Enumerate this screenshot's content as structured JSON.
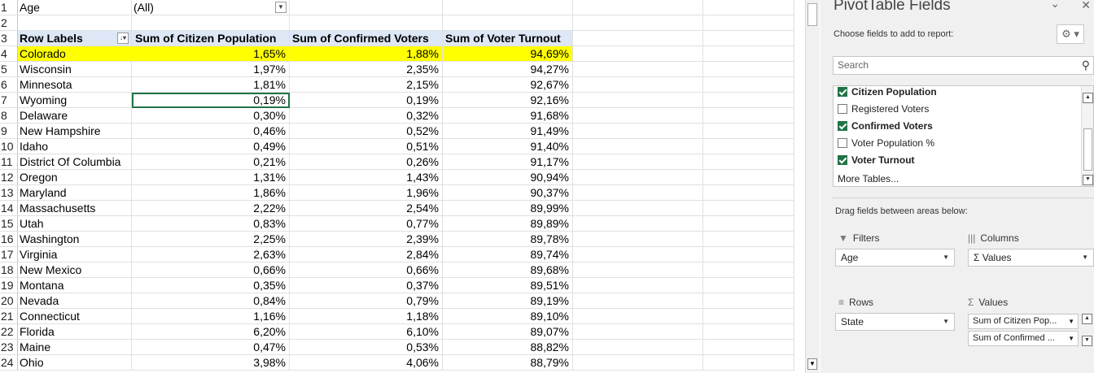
{
  "filter": {
    "row_num": "1",
    "label": "Age",
    "value": "(All)"
  },
  "blank_row_num": "2",
  "header": {
    "row_num": "3",
    "row_labels": "Row Labels",
    "col1": "Sum of Citizen Population",
    "col2": "Sum of Confirmed Voters",
    "col3": "Sum of Voter Turnout"
  },
  "rows": [
    {
      "num": "4",
      "state": "Colorado",
      "citizen": "1,65%",
      "confirmed": "1,88%",
      "turnout": "94,69%"
    },
    {
      "num": "5",
      "state": "Wisconsin",
      "citizen": "1,97%",
      "confirmed": "2,35%",
      "turnout": "94,27%"
    },
    {
      "num": "6",
      "state": "Minnesota",
      "citizen": "1,81%",
      "confirmed": "2,15%",
      "turnout": "92,67%"
    },
    {
      "num": "7",
      "state": "Wyoming",
      "citizen": "0,19%",
      "confirmed": "0,19%",
      "turnout": "92,16%"
    },
    {
      "num": "8",
      "state": "Delaware",
      "citizen": "0,30%",
      "confirmed": "0,32%",
      "turnout": "91,68%"
    },
    {
      "num": "9",
      "state": "New Hampshire",
      "citizen": "0,46%",
      "confirmed": "0,52%",
      "turnout": "91,49%"
    },
    {
      "num": "10",
      "state": "Idaho",
      "citizen": "0,49%",
      "confirmed": "0,51%",
      "turnout": "91,40%"
    },
    {
      "num": "11",
      "state": "District Of Columbia",
      "citizen": "0,21%",
      "confirmed": "0,26%",
      "turnout": "91,17%"
    },
    {
      "num": "12",
      "state": "Oregon",
      "citizen": "1,31%",
      "confirmed": "1,43%",
      "turnout": "90,94%"
    },
    {
      "num": "13",
      "state": "Maryland",
      "citizen": "1,86%",
      "confirmed": "1,96%",
      "turnout": "90,37%"
    },
    {
      "num": "14",
      "state": "Massachusetts",
      "citizen": "2,22%",
      "confirmed": "2,54%",
      "turnout": "89,99%"
    },
    {
      "num": "15",
      "state": "Utah",
      "citizen": "0,83%",
      "confirmed": "0,77%",
      "turnout": "89,89%"
    },
    {
      "num": "16",
      "state": "Washington",
      "citizen": "2,25%",
      "confirmed": "2,39%",
      "turnout": "89,78%"
    },
    {
      "num": "17",
      "state": "Virginia",
      "citizen": "2,63%",
      "confirmed": "2,84%",
      "turnout": "89,74%"
    },
    {
      "num": "18",
      "state": "New Mexico",
      "citizen": "0,66%",
      "confirmed": "0,66%",
      "turnout": "89,68%"
    },
    {
      "num": "19",
      "state": "Montana",
      "citizen": "0,35%",
      "confirmed": "0,37%",
      "turnout": "89,51%"
    },
    {
      "num": "20",
      "state": "Nevada",
      "citizen": "0,84%",
      "confirmed": "0,79%",
      "turnout": "89,19%"
    },
    {
      "num": "21",
      "state": "Connecticut",
      "citizen": "1,16%",
      "confirmed": "1,18%",
      "turnout": "89,10%"
    },
    {
      "num": "22",
      "state": "Florida",
      "citizen": "6,20%",
      "confirmed": "6,10%",
      "turnout": "89,07%"
    },
    {
      "num": "23",
      "state": "Maine",
      "citizen": "0,47%",
      "confirmed": "0,53%",
      "turnout": "88,82%"
    },
    {
      "num": "24",
      "state": "Ohio",
      "citizen": "3,98%",
      "confirmed": "4,06%",
      "turnout": "88,79%"
    }
  ],
  "highlight_color": "#ffff00",
  "header_fill": "#dde7f6",
  "selection_color": "#217346",
  "panel": {
    "title": "PivotTable Fields",
    "subtitle": "Choose fields to add to report:",
    "search_placeholder": "Search",
    "fields": [
      {
        "label": "Citizen Population",
        "checked": true
      },
      {
        "label": "Registered Voters",
        "checked": false
      },
      {
        "label": "Confirmed Voters",
        "checked": true
      },
      {
        "label": "Voter Population %",
        "checked": false
      },
      {
        "label": "Voter Turnout",
        "checked": true
      }
    ],
    "more_tables": "More Tables...",
    "drag_hint": "Drag fields between areas below:",
    "areas": {
      "filters_label": "Filters",
      "filters_value": "Age",
      "columns_label": "Columns",
      "columns_value": "Σ Values",
      "rows_label": "Rows",
      "rows_value": "State",
      "values_label": "Values",
      "values_items": [
        "Sum of Citizen Pop...",
        "Sum of Confirmed ..."
      ]
    }
  }
}
